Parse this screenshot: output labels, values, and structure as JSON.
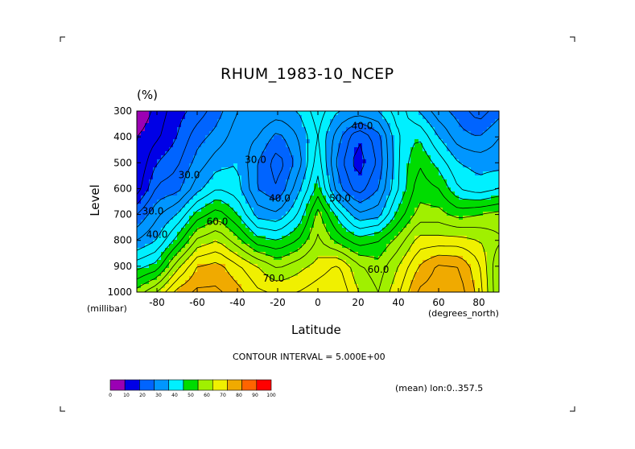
{
  "chart_data": {
    "type": "heatmap",
    "title": "RHUM_1983-10_NCEP",
    "units": "(%)",
    "xlabel": "Latitude",
    "ylabel": "Level",
    "x_units": "(degrees_north)",
    "y_units": "(millibar)",
    "xlim": [
      -90,
      90
    ],
    "ylim": [
      1000,
      300
    ],
    "x_ticks": [
      -80,
      -60,
      -40,
      -20,
      0,
      20,
      40,
      60,
      80
    ],
    "x_tick_labels": [
      "-80",
      "-60",
      "-40",
      "-20",
      "0",
      "20",
      "40",
      "60",
      "80"
    ],
    "y_ticks": [
      300,
      400,
      500,
      600,
      700,
      800,
      900,
      1000
    ],
    "y_tick_labels": [
      "300",
      "400",
      "500",
      "600",
      "700",
      "800",
      "900",
      "1000"
    ],
    "contour_interval_text": "CONTOUR INTERVAL = 5.000E+00",
    "note": "(mean) lon:0..357.5",
    "contour_labels": [
      {
        "text": "40.0",
        "lat": 22,
        "level": 370
      },
      {
        "text": "30.0",
        "lat": -31,
        "level": 500
      },
      {
        "text": "30.0",
        "lat": -64,
        "level": 560
      },
      {
        "text": "40.0",
        "lat": -19,
        "level": 650
      },
      {
        "text": "50.0",
        "lat": 11,
        "level": 650
      },
      {
        "text": "30.0",
        "lat": -82,
        "level": 700
      },
      {
        "text": "60.0",
        "lat": -50,
        "level": 740
      },
      {
        "text": "40.0",
        "lat": -80,
        "level": 790
      },
      {
        "text": "60.0",
        "lat": 30,
        "level": 925
      },
      {
        "text": "70.0",
        "lat": -22,
        "level": 960
      }
    ],
    "lat_grid": [
      -90,
      -80,
      -70,
      -60,
      -50,
      -40,
      -30,
      -20,
      -10,
      0,
      10,
      20,
      30,
      40,
      50,
      60,
      70,
      80,
      90
    ],
    "level_grid": [
      300,
      400,
      500,
      600,
      700,
      800,
      900,
      1000
    ],
    "values": [
      [
        5,
        12,
        18,
        22,
        28,
        35,
        40,
        38,
        40,
        48,
        40,
        38,
        40,
        48,
        40,
        32,
        28,
        22,
        28
      ],
      [
        10,
        14,
        20,
        28,
        32,
        38,
        35,
        28,
        35,
        45,
        32,
        20,
        28,
        45,
        50,
        40,
        32,
        30,
        35
      ],
      [
        10,
        20,
        24,
        32,
        38,
        40,
        30,
        22,
        32,
        48,
        28,
        17,
        26,
        45,
        55,
        48,
        40,
        38,
        38
      ],
      [
        12,
        26,
        28,
        38,
        45,
        42,
        30,
        25,
        38,
        52,
        32,
        22,
        30,
        45,
        58,
        55,
        45,
        42,
        45
      ],
      [
        25,
        34,
        40,
        52,
        58,
        50,
        38,
        36,
        45,
        62,
        48,
        36,
        38,
        52,
        62,
        62,
        58,
        60,
        62
      ],
      [
        35,
        40,
        52,
        66,
        70,
        62,
        52,
        50,
        55,
        66,
        58,
        52,
        55,
        62,
        72,
        72,
        72,
        70,
        66
      ],
      [
        48,
        52,
        68,
        80,
        82,
        76,
        70,
        64,
        68,
        72,
        76,
        66,
        62,
        70,
        80,
        86,
        85,
        76,
        60
      ],
      [
        62,
        70,
        82,
        86,
        86,
        82,
        76,
        74,
        75,
        78,
        80,
        70,
        65,
        74,
        86,
        88,
        88,
        78,
        60
      ]
    ],
    "colorbar": {
      "levels": [
        "0",
        "10",
        "20",
        "30",
        "40",
        "50",
        "60",
        "70",
        "80",
        "90",
        "100"
      ],
      "colors": [
        "#9b00b4",
        "#0000e6",
        "#0064ff",
        "#0096ff",
        "#00f0ff",
        "#00dc00",
        "#a0f000",
        "#f0f000",
        "#f0aa00",
        "#ff6400",
        "#ff0000"
      ]
    }
  }
}
